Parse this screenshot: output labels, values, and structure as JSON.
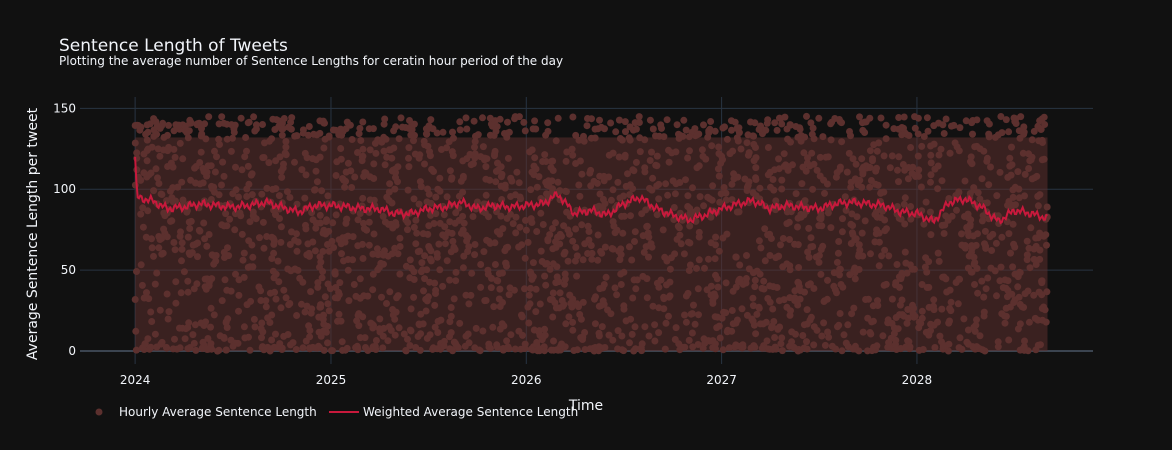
{
  "chart_data": {
    "type": "scatter",
    "title": "Sentence Length of Tweets",
    "subtitle": "Plotting the average number of Sentence Lengths for ceratin hour period of the day",
    "xlabel": "Time",
    "ylabel": "Average Sentence Length per tweet",
    "x_ticks": [
      "2024",
      "2025",
      "2026",
      "2027",
      "2028"
    ],
    "y_ticks": [
      0,
      50,
      100,
      150
    ],
    "xlim": [
      "2023-09-20",
      "2028-11-25"
    ],
    "ylim": [
      -8,
      157
    ],
    "x_range_data": [
      "2024-01-01",
      "2028-09-01"
    ],
    "grid": true,
    "legend_position": "bottom-left",
    "series": [
      {
        "name": "Hourly Average Sentence Length",
        "type": "scatter",
        "color": "#5c302e",
        "y_range": [
          0,
          145
        ],
        "dense_band": [
          0,
          132
        ]
      },
      {
        "name": "Weighted Average Sentence Length",
        "type": "line",
        "color": "#c8193c",
        "points": [
          [
            "2024-01-01",
            120
          ],
          [
            "2024-01-05",
            95
          ],
          [
            "2024-02-01",
            93
          ],
          [
            "2024-03-01",
            88
          ],
          [
            "2024-04-01",
            89
          ],
          [
            "2024-05-01",
            91
          ],
          [
            "2024-06-01",
            90
          ],
          [
            "2024-07-01",
            89
          ],
          [
            "2024-08-01",
            90
          ],
          [
            "2024-09-01",
            92
          ],
          [
            "2024-10-01",
            89
          ],
          [
            "2024-11-01",
            86
          ],
          [
            "2024-12-01",
            90
          ],
          [
            "2025-01-01",
            90
          ],
          [
            "2025-02-01",
            89
          ],
          [
            "2025-03-01",
            88
          ],
          [
            "2025-04-01",
            88
          ],
          [
            "2025-05-01",
            85
          ],
          [
            "2025-06-01",
            85
          ],
          [
            "2025-07-01",
            88
          ],
          [
            "2025-08-01",
            89
          ],
          [
            "2025-09-01",
            92
          ],
          [
            "2025-10-01",
            88
          ],
          [
            "2025-11-01",
            90
          ],
          [
            "2025-12-01",
            89
          ],
          [
            "2026-01-01",
            90
          ],
          [
            "2026-02-01",
            91
          ],
          [
            "2026-03-01",
            97
          ],
          [
            "2026-04-01",
            85
          ],
          [
            "2026-05-01",
            87
          ],
          [
            "2026-06-01",
            84
          ],
          [
            "2026-07-01",
            91
          ],
          [
            "2026-08-01",
            95
          ],
          [
            "2026-09-01",
            88
          ],
          [
            "2026-10-01",
            84
          ],
          [
            "2026-11-01",
            81
          ],
          [
            "2026-12-01",
            84
          ],
          [
            "2027-01-01",
            88
          ],
          [
            "2027-02-01",
            91
          ],
          [
            "2027-03-01",
            93
          ],
          [
            "2027-04-01",
            88
          ],
          [
            "2027-05-01",
            90
          ],
          [
            "2027-06-01",
            89
          ],
          [
            "2027-07-01",
            88
          ],
          [
            "2027-08-01",
            91
          ],
          [
            "2027-09-01",
            92
          ],
          [
            "2027-10-01",
            91
          ],
          [
            "2027-11-01",
            90
          ],
          [
            "2027-12-01",
            86
          ],
          [
            "2028-01-01",
            85
          ],
          [
            "2028-02-01",
            80
          ],
          [
            "2028-03-01",
            92
          ],
          [
            "2028-04-01",
            94
          ],
          [
            "2028-05-01",
            89
          ],
          [
            "2028-06-01",
            80
          ],
          [
            "2028-07-01",
            87
          ],
          [
            "2028-08-01",
            85
          ],
          [
            "2028-09-01",
            82
          ]
        ]
      }
    ]
  }
}
